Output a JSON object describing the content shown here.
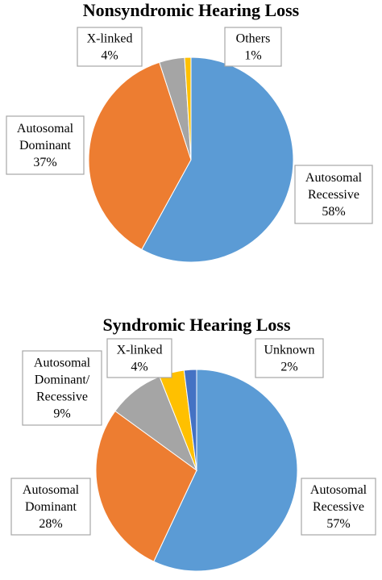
{
  "colors": {
    "autosomal_recessive": "#5B9BD5",
    "autosomal_dominant": "#ED7D31",
    "x_linked": "#A5A5A5",
    "others": "#FFC000",
    "dominant_recessive": "#A5A5A5",
    "x_linked_syndromic": "#FFC000",
    "unknown": "#4472C4"
  },
  "chart_data": [
    {
      "type": "pie",
      "title": "Nonsyndromic Hearing Loss",
      "slices": [
        {
          "label": [
            "Autosomal",
            "Recessive",
            "58%"
          ],
          "value": 58,
          "color": "#5B9BD5"
        },
        {
          "label": [
            "Autosomal",
            "Dominant",
            "37%"
          ],
          "value": 37,
          "color": "#ED7D31"
        },
        {
          "label": [
            "X-linked",
            "4%"
          ],
          "value": 4,
          "color": "#A5A5A5"
        },
        {
          "label": [
            "Others",
            "1%"
          ],
          "value": 1,
          "color": "#FFC000"
        }
      ]
    },
    {
      "type": "pie",
      "title": "Syndromic Hearing Loss",
      "slices": [
        {
          "label": [
            "Autosomal",
            "Recessive",
            "57%"
          ],
          "value": 57,
          "color": "#5B9BD5"
        },
        {
          "label": [
            "Autosomal",
            "Dominant",
            "28%"
          ],
          "value": 28,
          "color": "#ED7D31"
        },
        {
          "label": [
            "Autosomal",
            "Dominant/",
            "Recessive",
            "9%"
          ],
          "value": 9,
          "color": "#A5A5A5"
        },
        {
          "label": [
            "X-linked",
            "4%"
          ],
          "value": 4,
          "color": "#FFC000"
        },
        {
          "label": [
            "Unknown",
            "2%"
          ],
          "value": 2,
          "color": "#4472C4"
        }
      ]
    }
  ]
}
